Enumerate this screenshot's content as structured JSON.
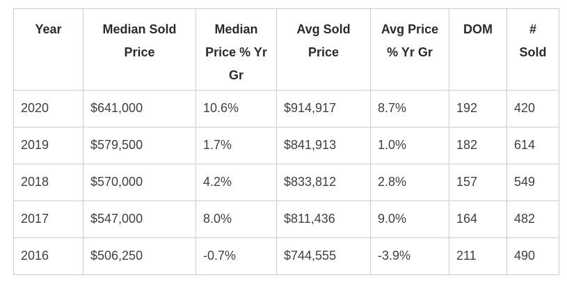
{
  "chart_data": {
    "type": "table",
    "title": "",
    "columns": [
      "Year",
      "Median Sold Price",
      "Median Price % Yr Gr",
      "Avg Sold Price",
      "Avg Price % Yr Gr",
      "DOM",
      "# Sold"
    ],
    "rows": [
      [
        "2020",
        "$641,000",
        "10.6%",
        "$914,917",
        "8.7%",
        "192",
        "420"
      ],
      [
        "2019",
        "$579,500",
        "1.7%",
        "$841,913",
        "1.0%",
        "182",
        "614"
      ],
      [
        "2018",
        "$570,000",
        "4.2%",
        "$833,812",
        "2.8%",
        "157",
        "549"
      ],
      [
        "2017",
        "$547,000",
        "8.0%",
        "$811,436",
        "9.0%",
        "164",
        "482"
      ],
      [
        "2016",
        "$506,250",
        "-0.7%",
        "$744,555",
        "-3.9%",
        "211",
        "490"
      ]
    ]
  },
  "header_display": [
    "Year",
    "Median Sold\nPrice",
    "Median\nPrice % Yr\nGr",
    "Avg Sold\nPrice",
    "Avg Price\n% Yr Gr",
    "DOM",
    "#\nSold"
  ],
  "colors": {
    "background": "#ffffff",
    "border": "#cccccc",
    "header_text": "#2b2b2b",
    "body_text": "#3f3f3f"
  }
}
